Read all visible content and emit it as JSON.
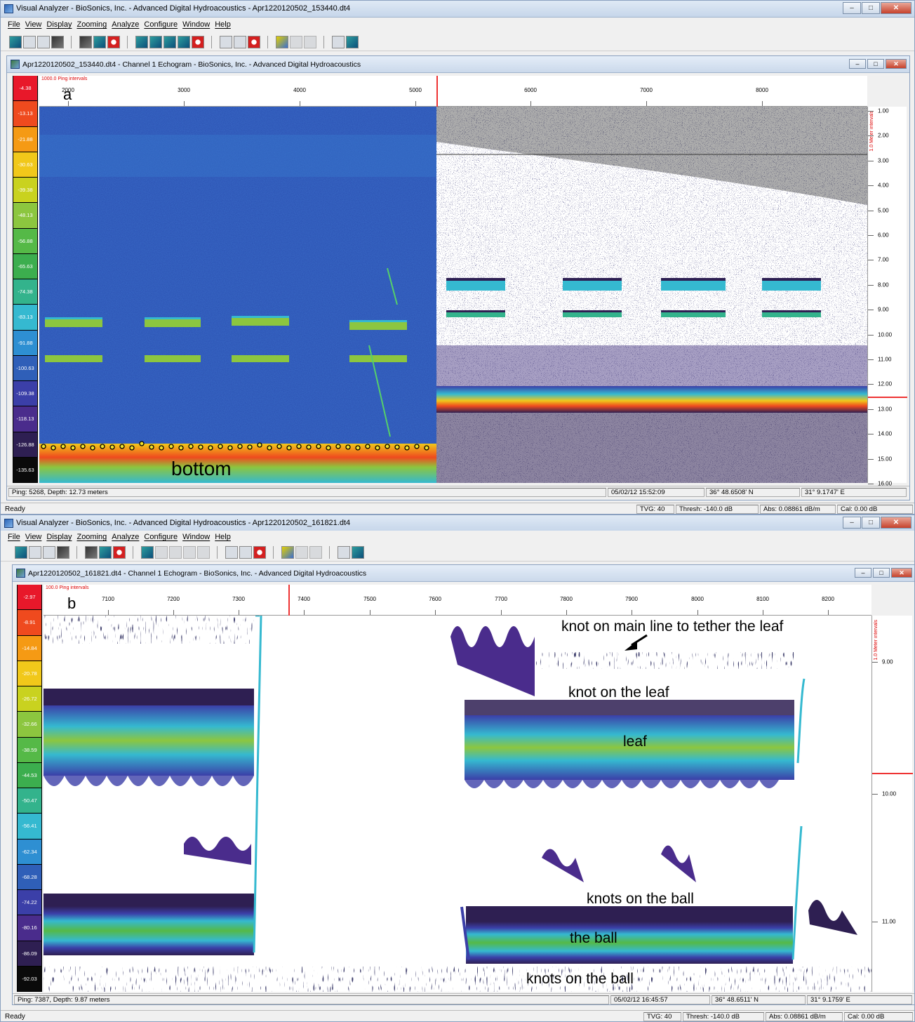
{
  "window_a": {
    "title": "Visual Analyzer - BioSonics, Inc. - Advanced Digital Hydroacoustics - Apr1220120502_153440.dt4",
    "menus": [
      "File",
      "View",
      "Display",
      "Zooming",
      "Analyze",
      "Configure",
      "Window",
      "Help"
    ],
    "child_title": "Apr1220120502_153440.dt4 - Channel 1  Echogram - BioSonics, Inc. - Advanced Digital Hydroacoustics",
    "panel_label": "a",
    "color_scale": [
      "-4.38",
      "-13.13",
      "-21.88",
      "-30.63",
      "-39.38",
      "-48.13",
      "-56.88",
      "-65.63",
      "-74.38",
      "-83.13",
      "-91.88",
      "-100.63",
      "-109.38",
      "-118.13",
      "-126.88",
      "-135.63"
    ],
    "ping_interval_label": "1000.0 Ping intervals",
    "x_ticks": [
      "2000",
      "3000",
      "4000",
      "5000",
      "6000",
      "7000",
      "8000"
    ],
    "depth_ticks": [
      "1.00",
      "2.00",
      "3.00",
      "4.00",
      "5.00",
      "6.00",
      "7.00",
      "8.00",
      "9.00",
      "10.00",
      "11.00",
      "12.00",
      "13.00",
      "14.00",
      "15.00",
      "16.00"
    ],
    "depth_axis_label": "1.0 Meter intervals",
    "bottom_label": "bottom",
    "status": {
      "ping_depth": "Ping: 5268, Depth: 12.73 meters",
      "datetime": "05/02/12 15:52:09",
      "lat": "36° 48.6508' N",
      "lon": "31° 9.1747' E"
    },
    "ready": "Ready",
    "ready_fields": {
      "tvg": "TVG: 40",
      "thresh": "Thresh: -140.0 dB",
      "abs": "Abs: 0.08861 dB/m",
      "cal": "Cal: 0.00 dB"
    }
  },
  "window_b": {
    "title": "Visual Analyzer - BioSonics, Inc. - Advanced Digital Hydroacoustics - Apr1220120502_161821.dt4",
    "menus": [
      "File",
      "View",
      "Display",
      "Zooming",
      "Analyze",
      "Configure",
      "Window",
      "Help"
    ],
    "child_title": "Apr1220120502_161821.dt4 - Channel 1  Echogram - BioSonics, Inc. - Advanced Digital Hydroacoustics",
    "panel_label": "b",
    "color_scale": [
      "-2.97",
      "-8.91",
      "-14.84",
      "-20.78",
      "-26.72",
      "-32.66",
      "-38.59",
      "-44.53",
      "-50.47",
      "-56.41",
      "-62.34",
      "-68.28",
      "-74.22",
      "-80.16",
      "-86.09",
      "-92.03"
    ],
    "ping_interval_label": "100.0 Ping intervals",
    "x_ticks": [
      "7100",
      "7200",
      "7300",
      "7400",
      "7500",
      "7600",
      "7700",
      "7800",
      "7900",
      "8000",
      "8100",
      "8200"
    ],
    "depth_ticks": [
      "9.00",
      "10.00",
      "11.00"
    ],
    "depth_axis_label": "1.0 Meter intervals",
    "annotations": {
      "knot_main": "knot on main line to tether the leaf",
      "knot_leaf": "knot on the leaf",
      "leaf": "leaf",
      "knots_ball_top": "knots on the ball",
      "ball": "the ball",
      "knots_ball_bottom": "knots on the ball"
    },
    "status": {
      "ping_depth": "Ping: 7387, Depth: 9.87 meters",
      "datetime": "05/02/12 16:45:57",
      "lat": "36° 48.6511' N",
      "lon": "31° 9.1759' E"
    },
    "ready": "Ready",
    "ready_fields": {
      "tvg": "TVG: 40",
      "thresh": "Thresh: -140.0 dB",
      "abs": "Abs: 0.08861 dB/m",
      "cal": "Cal: 0.00 dB"
    }
  },
  "window_controls": {
    "minimize": "–",
    "maximize": "□",
    "close": "✕"
  },
  "colors": {
    "scale": [
      "#e8182a",
      "#ef4a1e",
      "#f59a14",
      "#f1c81a",
      "#c9d21f",
      "#8cc63f",
      "#55b947",
      "#3cae4e",
      "#33b38c",
      "#35b9d0",
      "#2e8fd2",
      "#2f5fb8",
      "#3b3fa8",
      "#4a2c8c",
      "#2e1f52",
      "#0a0a0a"
    ],
    "water": "#2a4fb0"
  }
}
